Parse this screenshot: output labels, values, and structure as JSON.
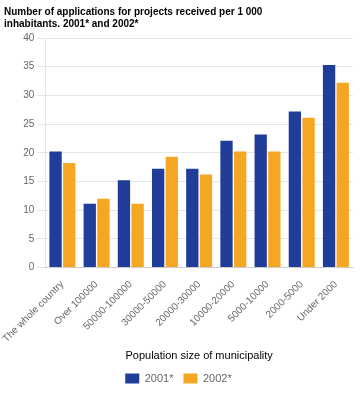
{
  "chart_data": {
    "type": "bar",
    "title": [
      "Number of applications for projects received per 1 000",
      "inhabitants. 2001* and 2002*"
    ],
    "x_label": "Population size of municipality",
    "categories": [
      "The whole country",
      "Over 100000",
      "50000-100000",
      "30000-50000",
      "20000-30000",
      "10000-20000",
      "5000-10000",
      "2000-5000",
      "Under 2000"
    ],
    "series": [
      {
        "name": "2001*",
        "color": "#1f3d99",
        "values": [
          20.2,
          11.1,
          15.2,
          17.2,
          17.2,
          22.1,
          23.2,
          27.2,
          35.3
        ]
      },
      {
        "name": "2002*",
        "color": "#f5a623",
        "values": [
          18.2,
          12.0,
          11.1,
          19.3,
          16.2,
          20.2,
          20.2,
          26.1,
          32.2
        ]
      }
    ],
    "ylim": [
      0,
      40
    ],
    "yticks": [
      0,
      5,
      10,
      15,
      20,
      25,
      30,
      35,
      40
    ],
    "grid": true,
    "legend": "bottom"
  }
}
